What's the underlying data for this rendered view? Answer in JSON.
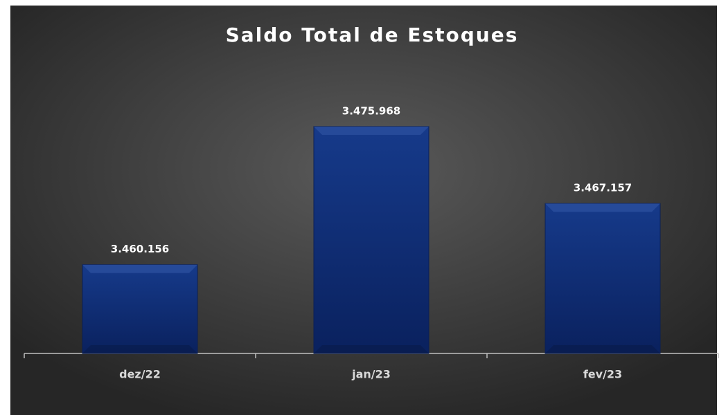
{
  "chart_data": {
    "type": "bar",
    "title": "Saldo Total de Estoques",
    "categories": [
      "dez/22",
      "jan/23",
      "fev/23"
    ],
    "values": [
      3460156,
      3475968,
      3467157
    ],
    "value_labels": [
      "3.460.156",
      "3.475.968",
      "3.467.157"
    ],
    "color": "#0b2566",
    "ylim": [
      3450000,
      3480000
    ]
  }
}
